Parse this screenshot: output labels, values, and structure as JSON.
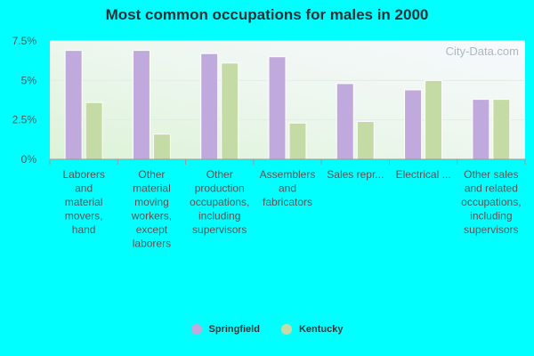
{
  "chart_data": {
    "type": "bar",
    "title": "Most common occupations for males in 2000",
    "watermark": "City-Data.com",
    "categories": [
      "Laborers and material movers, hand",
      "Other material moving workers, except laborers",
      "Other production occupations, including supervisors",
      "Assemblers and fabricators",
      "Sales repr...",
      "Electrical ...",
      "Other sales and related occupations, including supervisors"
    ],
    "category_label_lines": [
      [
        "Laborers",
        "and",
        "material",
        "movers,",
        "hand"
      ],
      [
        "Other",
        "material",
        "moving",
        "workers,",
        "except",
        "laborers"
      ],
      [
        "Other",
        "production",
        "occupations,",
        "including",
        "supervisors"
      ],
      [
        "Assemblers",
        "and",
        "fabricators"
      ],
      [
        "Sales repr..."
      ],
      [
        "Electrical ..."
      ],
      [
        "Other sales",
        "and related",
        "occupations,",
        "including",
        "supervisors"
      ]
    ],
    "series": [
      {
        "name": "Springfield",
        "color": "#c0a9dc",
        "values": [
          6.9,
          6.9,
          6.7,
          6.5,
          4.8,
          4.4,
          3.8
        ]
      },
      {
        "name": "Kentucky",
        "color": "#c5dba6",
        "values": [
          3.6,
          1.6,
          6.1,
          2.3,
          2.4,
          5.0,
          3.8
        ]
      }
    ],
    "yticks": [
      "0%",
      "2.5%",
      "5%",
      "7.5%"
    ],
    "ytick_values": [
      0,
      2.5,
      5,
      7.5
    ],
    "ylim": [
      0,
      7.5
    ],
    "grid": true,
    "legend_position": "bottom"
  }
}
